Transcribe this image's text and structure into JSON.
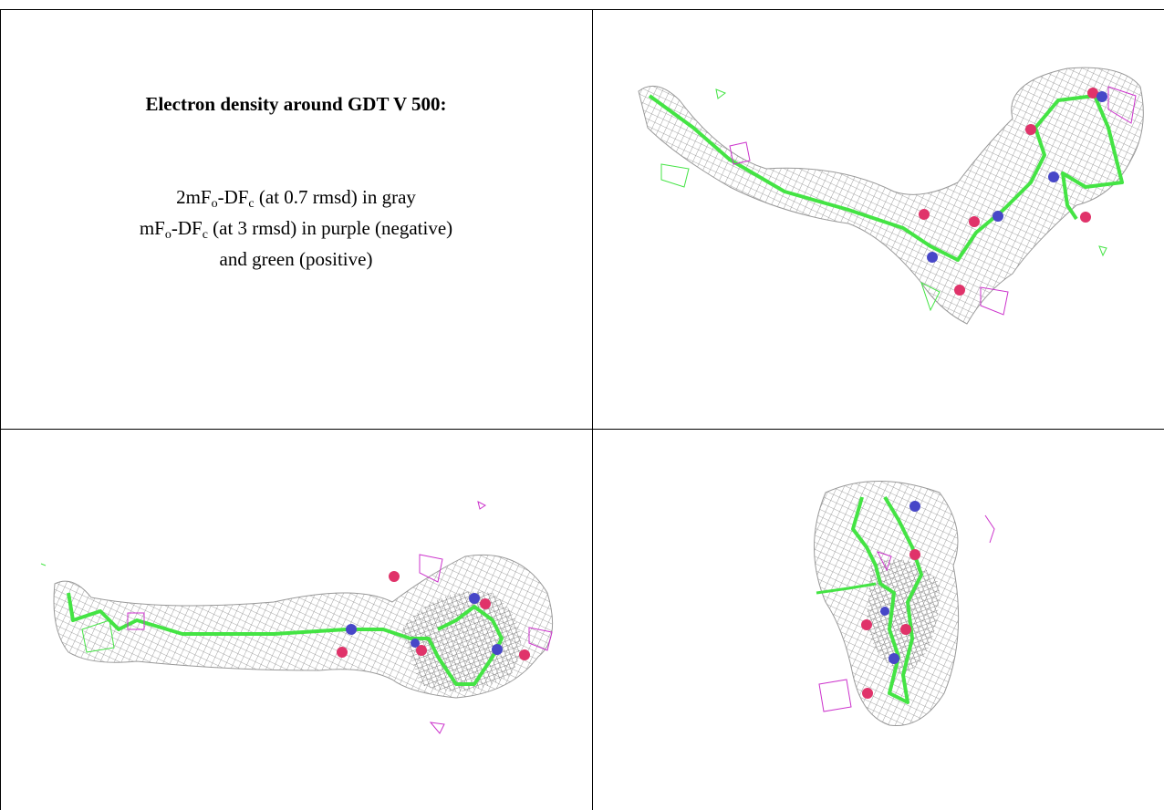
{
  "caption": {
    "title": "Electron density around GDT V 500:",
    "lines": [
      [
        {
          "text": "2mF"
        },
        {
          "text": "o",
          "sub": true
        },
        {
          "text": "-DF"
        },
        {
          "text": "c",
          "sub": true
        },
        {
          "text": " (at 0.7 rmsd) in gray"
        }
      ],
      [
        {
          "text": "mF"
        },
        {
          "text": "o",
          "sub": true
        },
        {
          "text": "-DF"
        },
        {
          "text": "c",
          "sub": true
        },
        {
          "text": " (at 3 rmsd) in purple (negative)"
        }
      ],
      [
        {
          "text": "and green (positive)"
        }
      ]
    ]
  }
}
